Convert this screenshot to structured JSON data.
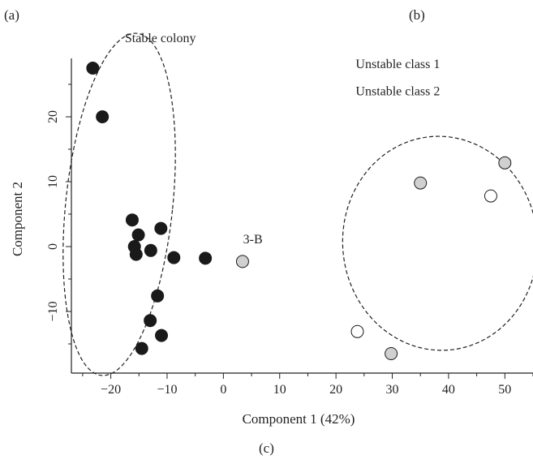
{
  "panel_labels": {
    "a": "(a)",
    "b": "(b)",
    "c": "(c)"
  },
  "chart_data": {
    "type": "scatter",
    "xlabel": "Component 1 (42%)",
    "ylabel": "Component 2",
    "xlim": [
      -27,
      55
    ],
    "ylim": [
      -19.5,
      29
    ],
    "xticks": [
      -20,
      -10,
      0,
      10,
      20,
      30,
      40,
      50
    ],
    "yticks": [
      -10,
      0,
      10,
      20
    ],
    "tick_labels_x": [
      "−20",
      "−10",
      "0",
      "10",
      "20",
      "30",
      "40",
      "50"
    ],
    "tick_labels_y": [
      "−10",
      "0",
      "10",
      "20"
    ],
    "grid": false,
    "annotations": [
      {
        "text": "Stable colony",
        "x": -17.5,
        "y": 31.5
      },
      {
        "text": "3-B",
        "x": 3.5,
        "y": 0.5
      },
      {
        "text": "Unstable class 1",
        "x": 23.5,
        "y": 27.5
      },
      {
        "text": "Unstable class 2",
        "x": 23.5,
        "y": 23.3
      }
    ],
    "ellipses": [
      {
        "cx": -18.5,
        "cy": 6.5,
        "rx": 9.5,
        "ry": 26.5,
        "angle_deg": 6,
        "style": "dashed"
      },
      {
        "cx": 38.5,
        "cy": 0.5,
        "rx": 17.3,
        "ry": 16.5,
        "angle_deg": -5,
        "style": "dashed"
      }
    ],
    "series": [
      {
        "name": "Stable colony",
        "color": "#1a1a1a",
        "points": [
          [
            -23.2,
            27.5
          ],
          [
            -21.5,
            20
          ],
          [
            -16.2,
            4.1
          ],
          [
            -15.1,
            1.8
          ],
          [
            -15.8,
            0
          ],
          [
            -15.5,
            -1.2
          ],
          [
            -11.1,
            2.8
          ],
          [
            -12.9,
            -0.6
          ],
          [
            -8.8,
            -1.7
          ],
          [
            -3.2,
            -1.8
          ],
          [
            -11.7,
            -7.6
          ],
          [
            -13,
            -11.4
          ],
          [
            -11,
            -13.7
          ],
          [
            -14.5,
            -15.7
          ]
        ]
      },
      {
        "name": "",
        "color": "#d0d0d0",
        "points": [
          [
            3.4,
            -2.3
          ],
          [
            35,
            9.8
          ],
          [
            50,
            12.9
          ],
          [
            29.8,
            -16.5
          ]
        ]
      },
      {
        "name": "",
        "color": "#ffffff",
        "points": [
          [
            47.5,
            7.8
          ],
          [
            23.8,
            -13.1
          ]
        ]
      }
    ]
  }
}
